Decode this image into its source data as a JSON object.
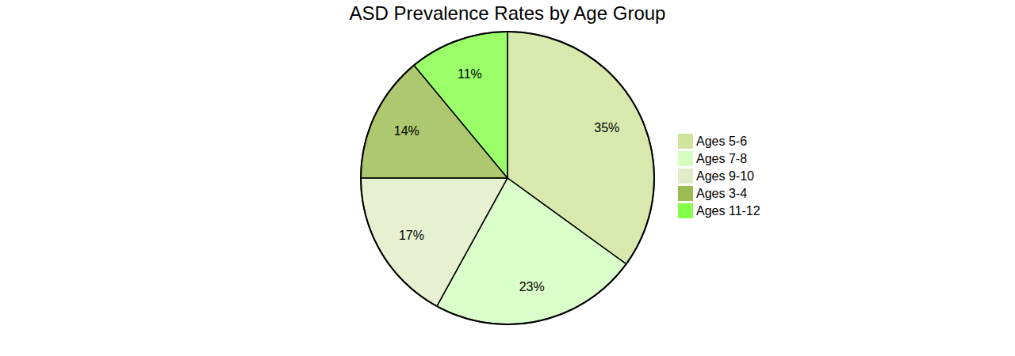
{
  "chart_data": {
    "type": "pie",
    "title": "ASD Prevalence Rates by Age Group",
    "categories": [
      "Ages 5-6",
      "Ages 7-8",
      "Ages 9-10",
      "Ages 3-4",
      "Ages 11-12"
    ],
    "values": [
      35,
      23,
      17,
      14,
      11
    ],
    "value_labels": [
      "35%",
      "23%",
      "17%",
      "14%",
      "11%"
    ],
    "colors": [
      "#c9df8a",
      "#ccffb3",
      "#dde9bd",
      "#8ab032",
      "#70ff2a"
    ],
    "data_labels": true,
    "legend": "right"
  }
}
